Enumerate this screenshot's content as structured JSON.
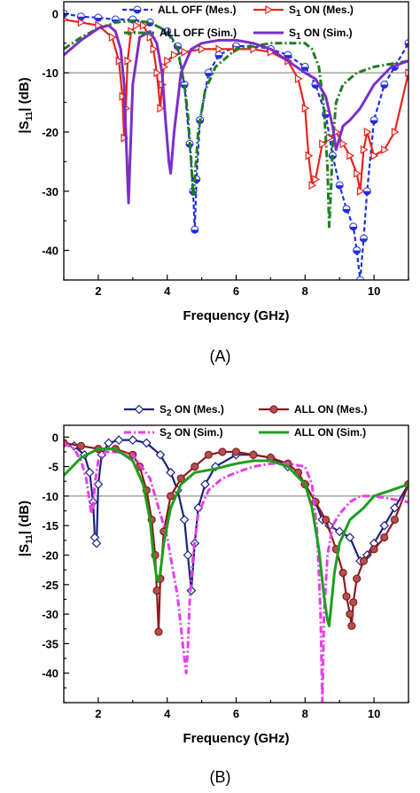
{
  "figure": {
    "panels": [
      "(A)",
      "(B)"
    ]
  },
  "chart_data": [
    {
      "type": "line",
      "panel_label": "(A)",
      "xlabel": "Frequency (GHz)",
      "ylabel_main": "|S",
      "ylabel_sub": "11",
      "ylabel_end": "| (dB)",
      "xlim": [
        1,
        11
      ],
      "ylim": [
        -45,
        2
      ],
      "xticks": [
        2,
        4,
        6,
        8,
        10
      ],
      "yticks": [
        0,
        -10,
        -20,
        -30,
        -40
      ],
      "reference_line": -10,
      "legend_placement": "top-right",
      "series": [
        {
          "name": "ALL OFF (Mes.)",
          "color": "#1f2fe0",
          "dash": "dash",
          "marker": "half-circle",
          "x": [
            1,
            1.5,
            2,
            2.5,
            3,
            3.5,
            4,
            4.3,
            4.5,
            4.65,
            4.75,
            4.8,
            4.85,
            4.95,
            5.2,
            5.5,
            6,
            6.5,
            7,
            7.5,
            8,
            8.3,
            8.6,
            8.8,
            9,
            9.2,
            9.4,
            9.5,
            9.6,
            9.7,
            9.8,
            10,
            10.3,
            10.6,
            11
          ],
          "y": [
            0,
            -0.5,
            -0.7,
            -1,
            -1,
            -1.5,
            -3,
            -5.5,
            -12,
            -22,
            -30,
            -36.5,
            -28,
            -18,
            -10,
            -7,
            -5.5,
            -5.5,
            -6,
            -7,
            -9,
            -12,
            -17,
            -24,
            -29,
            -33,
            -36,
            -40,
            -45,
            -38,
            -30,
            -18,
            -12,
            -9,
            -5
          ]
        },
        {
          "name": "S1 ON (Mes.)",
          "label_sub": "1",
          "color": "#e8241a",
          "dash": "solid",
          "marker": "triangle-right",
          "x": [
            1,
            1.5,
            2,
            2.4,
            2.6,
            2.7,
            2.75,
            2.8,
            2.85,
            2.95,
            3.1,
            3.3,
            3.5,
            3.6,
            3.7,
            3.8,
            3.85,
            3.9,
            4.0,
            4.2,
            4.5,
            5,
            5.5,
            6,
            6.5,
            7,
            7.5,
            7.8,
            8.0,
            8.1,
            8.2,
            8.3,
            8.5,
            8.7,
            8.9,
            9.1,
            9.3,
            9.5,
            9.6,
            9.7,
            9.8,
            10.0,
            10.3,
            10.6,
            11
          ],
          "y": [
            -1,
            -1.5,
            -2,
            -4,
            -8,
            -14,
            -21,
            -16,
            -8,
            -3,
            -2,
            -2,
            -4,
            -6,
            -10,
            -16,
            -12,
            -9,
            -8,
            -7,
            -6.5,
            -6,
            -6,
            -6,
            -6,
            -6.5,
            -8,
            -11,
            -16,
            -24,
            -29,
            -28,
            -22,
            -21,
            -20,
            -22,
            -24,
            -27,
            -30,
            -23,
            -20,
            -24,
            -23,
            -20,
            -10
          ]
        },
        {
          "name": "ALL OFF (Sim.)",
          "color": "#1e7d1e",
          "dash": "dashdot",
          "marker": "none",
          "x": [
            1,
            1.5,
            2,
            2.5,
            3,
            3.5,
            4,
            4.3,
            4.5,
            4.6,
            4.7,
            4.75,
            4.8,
            4.9,
            5.1,
            5.4,
            6,
            6.5,
            7,
            7.5,
            8,
            8.2,
            8.4,
            8.55,
            8.65,
            8.7,
            8.75,
            8.8,
            8.9,
            9.1,
            9.5,
            10,
            10.5,
            11
          ],
          "y": [
            -6,
            -4,
            -2.5,
            -1.5,
            -1.2,
            -1.5,
            -3,
            -6,
            -12,
            -17,
            -25,
            -31,
            -28,
            -20,
            -13,
            -9,
            -6,
            -5.5,
            -5,
            -5,
            -5,
            -6,
            -9,
            -16,
            -26,
            -36,
            -30,
            -22,
            -15,
            -12,
            -10,
            -9,
            -8.5,
            -8
          ]
        },
        {
          "name": "S1 ON (Sim.)",
          "label_sub": "1",
          "color": "#7a2fc8",
          "dash": "solid",
          "marker": "none",
          "x": [
            1,
            1.5,
            2,
            2.3,
            2.5,
            2.65,
            2.75,
            2.8,
            2.85,
            2.88,
            2.92,
            3.0,
            3.2,
            3.5,
            3.7,
            3.85,
            3.95,
            4.05,
            4.1,
            4.2,
            4.4,
            4.7,
            5.0,
            5.5,
            6,
            6.5,
            7,
            7.5,
            8,
            8.3,
            8.6,
            8.8,
            8.9,
            9.0,
            9.1,
            9.3,
            9.6,
            10,
            10.5,
            11
          ],
          "y": [
            -7,
            -4.5,
            -2.5,
            -2,
            -3,
            -6,
            -12,
            -20,
            -28,
            -32,
            -25,
            -12,
            -4,
            -3,
            -5,
            -10,
            -18,
            -25,
            -27,
            -20,
            -10,
            -6,
            -5,
            -4.5,
            -4.5,
            -5,
            -6,
            -8,
            -10,
            -11,
            -14,
            -19,
            -23,
            -21,
            -19,
            -18,
            -16,
            -12,
            -9,
            -8
          ]
        }
      ]
    },
    {
      "type": "line",
      "panel_label": "(B)",
      "xlabel": "Frequency (GHz)",
      "ylabel_main": "|S",
      "ylabel_sub": "11",
      "ylabel_end": "| (dB)",
      "xlim": [
        1,
        11
      ],
      "ylim": [
        -45,
        2
      ],
      "xticks": [
        2,
        4,
        6,
        8,
        10
      ],
      "yticks": [
        0,
        -5,
        -10,
        -15,
        -20,
        -25,
        -30,
        -35,
        -40
      ],
      "reference_line": -10,
      "legend_placement": "top-right",
      "series": [
        {
          "name": "S2 ON (Mes.)",
          "label_sub": "2",
          "color": "#1a237e",
          "dash": "solid",
          "marker": "diamond",
          "x": [
            1,
            1.3,
            1.6,
            1.75,
            1.85,
            1.9,
            1.95,
            2.0,
            2.1,
            2.3,
            2.6,
            3.0,
            3.4,
            3.8,
            4.1,
            4.3,
            4.5,
            4.6,
            4.7,
            4.8,
            4.9,
            5.1,
            5.4,
            6,
            6.5,
            7,
            7.5,
            8,
            8.3,
            8.5,
            8.7,
            9.0,
            9.3,
            9.6,
            9.8,
            10.0,
            10.3,
            10.6,
            11
          ],
          "y": [
            -1,
            -1.5,
            -3,
            -6,
            -11,
            -17,
            -18,
            -8,
            -3,
            -1,
            -0.5,
            -0.5,
            -1,
            -3,
            -6,
            -9,
            -14,
            -20,
            -26,
            -18,
            -12,
            -8,
            -5,
            -3,
            -3,
            -3.5,
            -5,
            -8,
            -11,
            -14,
            -15,
            -16,
            -17,
            -21,
            -20,
            -18,
            -15,
            -12,
            -8
          ]
        },
        {
          "name": "ALL ON (Mes.)",
          "color": "#8b1a1a",
          "dash": "solid",
          "marker": "circle",
          "x": [
            1,
            1.5,
            2,
            2.5,
            3,
            3.2,
            3.4,
            3.55,
            3.65,
            3.7,
            3.75,
            3.8,
            3.9,
            4.1,
            4.4,
            4.8,
            5.2,
            5.6,
            6,
            6.5,
            7,
            7.5,
            7.8,
            8.0,
            8.3,
            8.6,
            8.9,
            9.1,
            9.2,
            9.3,
            9.35,
            9.4,
            9.5,
            9.7,
            10,
            10.3,
            10.6,
            11
          ],
          "y": [
            -1,
            -1.5,
            -2,
            -2,
            -3,
            -5,
            -9,
            -14,
            -20,
            -26,
            -33,
            -24,
            -16,
            -10,
            -7,
            -5,
            -3,
            -2.5,
            -2.5,
            -3,
            -3.5,
            -4.5,
            -6,
            -8,
            -11,
            -14,
            -19,
            -23,
            -27,
            -30,
            -32,
            -28,
            -24,
            -21,
            -19,
            -17,
            -14,
            -8
          ]
        },
        {
          "name": "S2 ON (Sim.)",
          "label_sub": "2",
          "color": "#e83ee8",
          "dash": "dashdot",
          "marker": "none",
          "x": [
            1,
            1.3,
            1.5,
            1.65,
            1.75,
            1.8,
            1.85,
            1.9,
            2.0,
            2.2,
            2.5,
            3.0,
            3.5,
            4.0,
            4.3,
            4.45,
            4.55,
            4.6,
            4.65,
            4.75,
            4.9,
            5.2,
            5.6,
            6,
            6.5,
            7,
            7.5,
            8,
            8.2,
            8.35,
            8.45,
            8.5,
            8.55,
            8.65,
            8.8,
            9.0,
            9.3,
            9.6,
            10,
            10.5,
            11
          ],
          "y": [
            -1,
            -2,
            -4,
            -7,
            -11,
            -13,
            -12,
            -8,
            -4,
            -2.5,
            -2.5,
            -3,
            -7,
            -17,
            -27,
            -35,
            -40,
            -36,
            -28,
            -20,
            -13,
            -9,
            -7,
            -6,
            -5,
            -4.5,
            -4.5,
            -5,
            -8,
            -16,
            -30,
            -45,
            -30,
            -20,
            -15,
            -13,
            -11,
            -10,
            -10,
            -10.5,
            -11
          ]
        },
        {
          "name": "ALL ON (Sim.)",
          "color": "#1e9e1e",
          "dash": "solid",
          "marker": "none",
          "x": [
            1,
            1.5,
            2,
            2.5,
            3,
            3.3,
            3.5,
            3.6,
            3.7,
            3.75,
            3.8,
            3.9,
            4.1,
            4.4,
            4.8,
            5.3,
            6,
            6.5,
            7,
            7.5,
            8,
            8.2,
            8.4,
            8.55,
            8.65,
            8.7,
            8.75,
            8.85,
            9.0,
            9.3,
            9.7,
            10.0,
            10.5,
            11
          ],
          "y": [
            -6.5,
            -3.5,
            -2,
            -2,
            -4,
            -8,
            -14,
            -20,
            -24,
            -24.5,
            -23,
            -18,
            -12,
            -8,
            -6,
            -5.5,
            -4.5,
            -4,
            -4,
            -5,
            -8,
            -12,
            -19,
            -27,
            -31,
            -32,
            -29,
            -23,
            -18,
            -14,
            -12,
            -10,
            -9,
            -8
          ]
        }
      ]
    }
  ]
}
